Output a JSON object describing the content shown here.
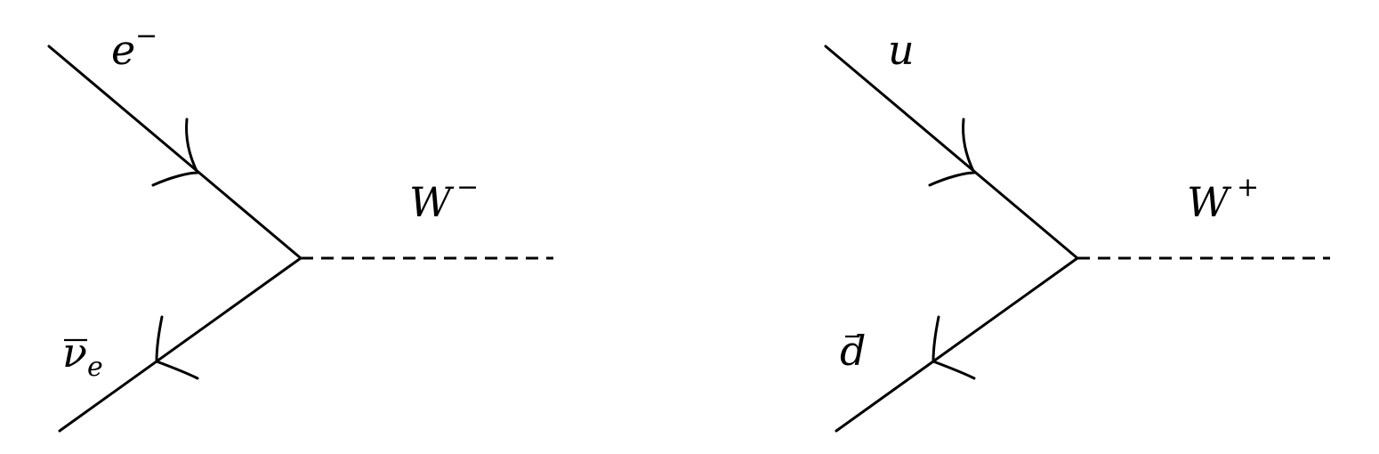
{
  "diagrams": [
    {
      "incoming": {
        "base": "e",
        "sup": "−",
        "sub": "",
        "bar": false
      },
      "outgoing": {
        "base": "ν",
        "sup": "",
        "sub": "e",
        "bar": true
      },
      "boson": {
        "base": "W",
        "sup": "−"
      }
    },
    {
      "incoming": {
        "base": "u",
        "sup": "",
        "sub": "",
        "bar": false
      },
      "outgoing": {
        "base": "d",
        "sup": "",
        "sub": "",
        "bar": true
      },
      "boson": {
        "base": "W",
        "sup": "+"
      }
    }
  ]
}
